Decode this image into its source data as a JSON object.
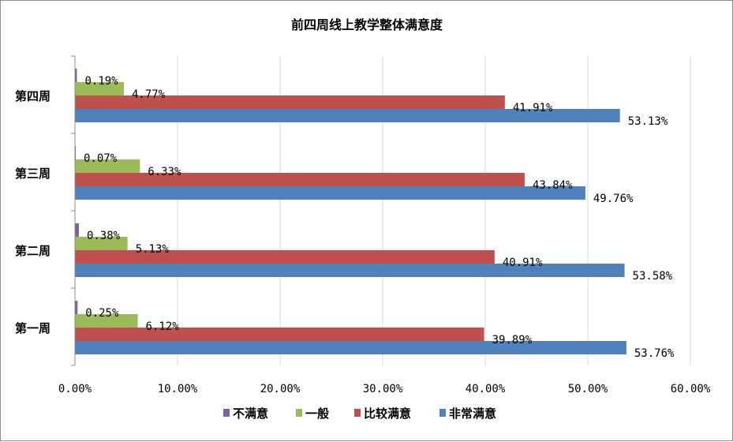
{
  "chart_data": {
    "type": "bar",
    "orientation": "horizontal",
    "title": "前四周线上教学整体满意度",
    "categories": [
      "第四周",
      "第三周",
      "第二周",
      "第一周"
    ],
    "series": [
      {
        "name": "不满意",
        "color": "#7f5fa0",
        "values": [
          0.19,
          0.07,
          0.38,
          0.25
        ],
        "labels": [
          "0.19%",
          "0.07%",
          "0.38%",
          "0.25%"
        ]
      },
      {
        "name": "一般",
        "color": "#9bbb59",
        "values": [
          4.77,
          6.33,
          5.13,
          6.12
        ],
        "labels": [
          "4.77%",
          "6.33%",
          "5.13%",
          "6.12%"
        ]
      },
      {
        "name": "比较满意",
        "color": "#c0504d",
        "values": [
          41.91,
          43.84,
          40.91,
          39.89
        ],
        "labels": [
          "41.91%",
          "43.84%",
          "40.91%",
          "39.89%"
        ]
      },
      {
        "name": "非常满意",
        "color": "#4f81bd",
        "values": [
          53.13,
          49.76,
          53.58,
          53.76
        ],
        "labels": [
          "53.13%",
          "49.76%",
          "53.58%",
          "53.76%"
        ]
      }
    ],
    "xlim": [
      0,
      60
    ],
    "x_ticks": [
      0,
      10,
      20,
      30,
      40,
      50,
      60
    ],
    "x_tick_labels": [
      "0.00%",
      "10.00%",
      "20.00%",
      "30.00%",
      "40.00%",
      "50.00%",
      "60.00%"
    ],
    "xlabel": "",
    "ylabel": "",
    "grid": "vertical",
    "legend_position": "bottom"
  }
}
